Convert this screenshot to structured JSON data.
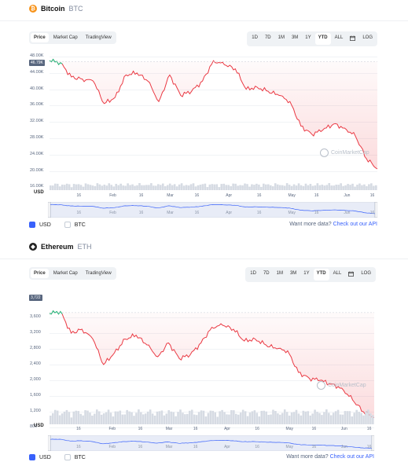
{
  "charts": [
    {
      "coin_name": "Bitcoin",
      "coin_symbol": "BTC",
      "icon": "bitcoin-icon",
      "icon_color": "#f7931a",
      "icon_glyph": "₿",
      "tabs": [
        "Price",
        "Market Cap",
        "TradingView"
      ],
      "active_tab": "Price",
      "ranges": [
        "1D",
        "7D",
        "1M",
        "3M",
        "1Y",
        "YTD",
        "ALL",
        "calendar",
        "LOG"
      ],
      "active_range": "YTD",
      "y_ticks": [
        "48.00K",
        "44.00K",
        "40.00K",
        "36.00K",
        "32.00K",
        "28.00K",
        "24.00K",
        "20.00K",
        "16.00K"
      ],
      "price_badge": "46.79K",
      "x_ticks": [
        "16",
        "Feb",
        "16",
        "Mar",
        "16",
        "Apr",
        "16",
        "May",
        "16",
        "Jun",
        "16"
      ],
      "axis_unit": "USD",
      "watermark": "CoinMarketCap",
      "legend_usd": "USD",
      "legend_btc": "BTC",
      "more_text": "Want more data?",
      "more_link": "Check out our API",
      "chart_data": {
        "type": "line",
        "title": "",
        "ylabel": "USD",
        "ylim": [
          16000,
          48000
        ],
        "start_value": 46790,
        "x": [
          "Jan 1",
          "Jan 5",
          "Jan 10",
          "Jan 15",
          "Jan 20",
          "Jan 24",
          "Feb 1",
          "Feb 7",
          "Feb 10",
          "Feb 15",
          "Feb 22",
          "Mar 1",
          "Mar 8",
          "Mar 15",
          "Mar 22",
          "Mar 28",
          "Apr 1",
          "Apr 5",
          "Apr 10",
          "Apr 15",
          "Apr 22",
          "May 1",
          "May 5",
          "May 10",
          "May 12",
          "May 20",
          "May 31",
          "Jun 5",
          "Jun 10",
          "Jun 13",
          "Jun 18"
        ],
        "y": [
          47000,
          46500,
          43000,
          42500,
          42000,
          36500,
          38000,
          43500,
          44000,
          42000,
          37000,
          43500,
          38500,
          39500,
          42000,
          47000,
          46000,
          45000,
          40000,
          40500,
          39500,
          38500,
          37000,
          31000,
          29000,
          30000,
          31500,
          30500,
          28500,
          23000,
          20500
        ]
      }
    },
    {
      "coin_name": "Ethereum",
      "coin_symbol": "ETH",
      "icon": "ethereum-icon",
      "icon_color": "#222222",
      "icon_glyph": "◆",
      "tabs": [
        "Price",
        "Market Cap",
        "TradingView"
      ],
      "active_tab": "Price",
      "ranges": [
        "1D",
        "7D",
        "1M",
        "3M",
        "1Y",
        "YTD",
        "ALL",
        "calendar",
        "LOG"
      ],
      "active_range": "YTD",
      "y_ticks": [
        "3,600",
        "3,200",
        "2,800",
        "2,400",
        "2,000",
        "1,600",
        "1,200",
        "800"
      ],
      "price_badge": "3,722",
      "x_ticks": [
        "16",
        "Feb",
        "16",
        "Mar",
        "16",
        "Apr",
        "16",
        "May",
        "16",
        "Jun",
        "16"
      ],
      "axis_unit": "USD",
      "watermark": "CoinMarketCap",
      "legend_usd": "USD",
      "legend_btc": "BTC",
      "more_text": "Want more data?",
      "more_link": "Check out our API",
      "chart_data": {
        "type": "line",
        "title": "",
        "ylabel": "USD",
        "ylim": [
          800,
          3600
        ],
        "start_value": 3722,
        "x": [
          "Jan 1",
          "Jan 5",
          "Jan 10",
          "Jan 15",
          "Jan 20",
          "Jan 24",
          "Feb 1",
          "Feb 7",
          "Feb 10",
          "Feb 15",
          "Feb 22",
          "Mar 1",
          "Mar 8",
          "Mar 15",
          "Mar 22",
          "Mar 28",
          "Apr 1",
          "Apr 5",
          "Apr 10",
          "Apr 15",
          "Apr 22",
          "May 1",
          "May 5",
          "May 10",
          "May 12",
          "May 20",
          "May 31",
          "Jun 5",
          "Jun 10",
          "Jun 13",
          "Jun 18"
        ],
        "y": [
          3700,
          3750,
          3200,
          3300,
          3050,
          2400,
          2700,
          3050,
          3150,
          2900,
          2600,
          2950,
          2550,
          2650,
          2950,
          3350,
          3400,
          3300,
          3000,
          3050,
          2900,
          2800,
          2750,
          2200,
          2050,
          2000,
          1900,
          1800,
          1500,
          1200,
          1050
        ]
      }
    }
  ]
}
